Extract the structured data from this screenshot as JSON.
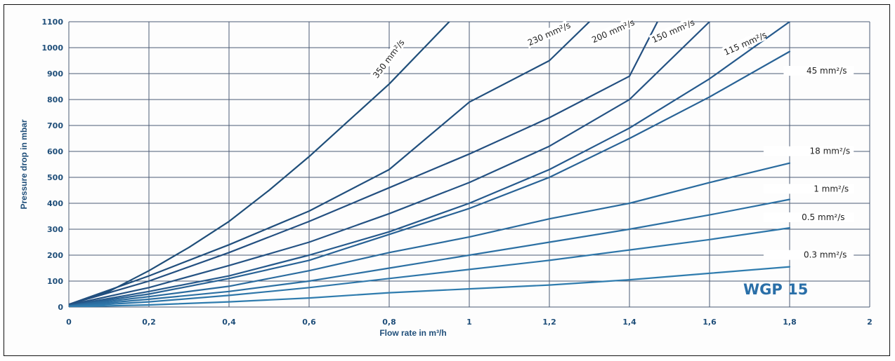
{
  "chart_data": {
    "type": "line",
    "title": "",
    "xlabel": "Flow rate  in m³/h",
    "ylabel": "Pressure drop  in  mbar",
    "xlim": [
      0,
      2
    ],
    "ylim": [
      0,
      1100
    ],
    "x_ticks": [
      "0",
      "0,2",
      "0,4",
      "0,6",
      "0,8",
      "1",
      "1,2",
      "1,4",
      "1,6",
      "1,8",
      "2"
    ],
    "x_tick_values": [
      0,
      0.2,
      0.4,
      0.6,
      0.8,
      1.0,
      1.2,
      1.4,
      1.6,
      1.8,
      2.0
    ],
    "y_ticks": [
      "0",
      "100",
      "200",
      "300",
      "400",
      "500",
      "600",
      "700",
      "800",
      "900",
      "1000",
      "1100"
    ],
    "y_tick_values": [
      0,
      100,
      200,
      300,
      400,
      500,
      600,
      700,
      800,
      900,
      1000,
      1100
    ],
    "grid": true,
    "annotation": "WGP 15",
    "series": [
      {
        "name": "350 mm²/s",
        "x": [
          0,
          0.1,
          0.2,
          0.3,
          0.4,
          0.5,
          0.6,
          0.7,
          0.8,
          0.9,
          0.95
        ],
        "y": [
          10,
          60,
          140,
          230,
          330,
          450,
          580,
          720,
          860,
          1020,
          1100
        ]
      },
      {
        "name": "230 mm²/s",
        "x": [
          0,
          0.2,
          0.4,
          0.6,
          0.8,
          1.0,
          1.2,
          1.3
        ],
        "y": [
          10,
          120,
          240,
          370,
          530,
          790,
          950,
          1100
        ]
      },
      {
        "name": "200 mm²/s",
        "x": [
          0,
          0.2,
          0.4,
          0.6,
          0.8,
          1.0,
          1.2,
          1.4,
          1.47
        ],
        "y": [
          10,
          100,
          210,
          330,
          460,
          590,
          730,
          890,
          1100
        ]
      },
      {
        "name": "150 mm²/s",
        "x": [
          0,
          0.2,
          0.4,
          0.6,
          0.8,
          1.0,
          1.2,
          1.4,
          1.6
        ],
        "y": [
          8,
          75,
          160,
          250,
          360,
          480,
          620,
          800,
          1100
        ]
      },
      {
        "name": "115 mm²/s",
        "x": [
          0,
          0.2,
          0.4,
          0.6,
          0.8,
          1.0,
          1.2,
          1.4,
          1.6,
          1.8
        ],
        "y": [
          6,
          60,
          120,
          200,
          290,
          400,
          530,
          690,
          880,
          1100
        ]
      },
      {
        "name": "45 mm²/s",
        "x": [
          0,
          0.2,
          0.4,
          0.6,
          0.8,
          1.0,
          1.2,
          1.4,
          1.6,
          1.8
        ],
        "y": [
          5,
          50,
          110,
          180,
          280,
          380,
          500,
          650,
          810,
          985
        ]
      },
      {
        "name": "18  mm²/s",
        "x": [
          0,
          0.2,
          0.4,
          0.6,
          0.8,
          1.0,
          1.2,
          1.4,
          1.6,
          1.8
        ],
        "y": [
          4,
          40,
          80,
          140,
          210,
          270,
          340,
          400,
          480,
          555
        ]
      },
      {
        "name": "1 mm²/s",
        "x": [
          0,
          0.2,
          0.4,
          0.6,
          0.8,
          1.0,
          1.2,
          1.4,
          1.6,
          1.8
        ],
        "y": [
          3,
          30,
          60,
          100,
          150,
          200,
          250,
          300,
          355,
          415
        ]
      },
      {
        "name": "0.5 mm²/s",
        "x": [
          0,
          0.2,
          0.4,
          0.6,
          0.8,
          1.0,
          1.2,
          1.4,
          1.6,
          1.8
        ],
        "y": [
          2,
          20,
          45,
          75,
          110,
          145,
          180,
          220,
          260,
          305
        ]
      },
      {
        "name": "0.3 mm²/s",
        "x": [
          0,
          0.2,
          0.4,
          0.6,
          0.8,
          1.0,
          1.2,
          1.4,
          1.6,
          1.8
        ],
        "y": [
          1,
          8,
          20,
          35,
          55,
          70,
          85,
          105,
          130,
          155
        ]
      }
    ]
  }
}
